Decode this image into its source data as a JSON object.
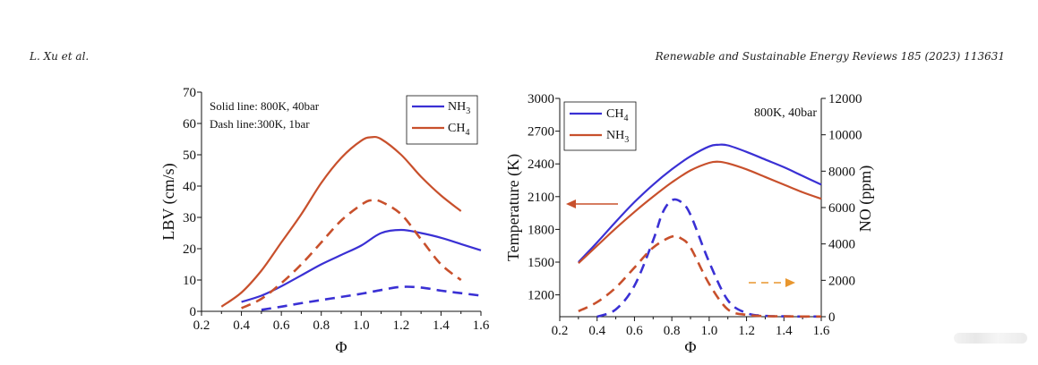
{
  "header": {
    "left": "L. Xu et al.",
    "right": "Renewable and Sustainable Energy Reviews 185 (2023) 113631"
  },
  "colors": {
    "blue": "#3a30d4",
    "red": "#c8502c",
    "orange": "#e8962e",
    "axis": "#111111"
  },
  "chart_data": [
    {
      "type": "line",
      "xlabel": "Φ",
      "ylabel": "LBV (cm/s)",
      "xlim": [
        0.2,
        1.6
      ],
      "ylim": [
        0,
        70
      ],
      "xticks": [
        "0.2",
        "0.4",
        "0.6",
        "0.8",
        "1.0",
        "1.2",
        "1.4",
        "1.6"
      ],
      "yticks": [
        "0",
        "10",
        "20",
        "30",
        "40",
        "50",
        "60",
        "70"
      ],
      "annotations": [
        "Solid line: 800K, 40bar",
        "Dash line:300K, 1bar"
      ],
      "legend": [
        {
          "label": "NH",
          "sub": "3",
          "color": "#3a30d4"
        },
        {
          "label": "CH",
          "sub": "4",
          "color": "#c8502c"
        }
      ],
      "series": [
        {
          "fuel": "CH4",
          "dash": false,
          "color": "#c8502c",
          "x": [
            0.3,
            0.4,
            0.5,
            0.6,
            0.7,
            0.8,
            0.9,
            1.0,
            1.05,
            1.1,
            1.2,
            1.3,
            1.4,
            1.5
          ],
          "y": [
            1.5,
            6,
            13,
            22,
            31,
            41,
            49,
            54.5,
            55.6,
            55,
            50,
            43,
            37,
            32
          ]
        },
        {
          "fuel": "NH3",
          "dash": false,
          "color": "#3a30d4",
          "x": [
            0.4,
            0.5,
            0.6,
            0.7,
            0.8,
            0.9,
            1.0,
            1.1,
            1.2,
            1.3,
            1.4,
            1.5,
            1.6
          ],
          "y": [
            3,
            5,
            8,
            11.5,
            15,
            18,
            21,
            25,
            26,
            25,
            23.5,
            21.5,
            19.5
          ]
        },
        {
          "fuel": "CH4",
          "dash": true,
          "color": "#c8502c",
          "x": [
            0.4,
            0.5,
            0.6,
            0.7,
            0.8,
            0.9,
            1.0,
            1.05,
            1.1,
            1.2,
            1.3,
            1.4,
            1.5
          ],
          "y": [
            1,
            4,
            9,
            15,
            22,
            29,
            34,
            35.5,
            35,
            31,
            23,
            15,
            10
          ]
        },
        {
          "fuel": "NH3",
          "dash": true,
          "color": "#3a30d4",
          "x": [
            0.5,
            0.6,
            0.7,
            0.8,
            0.9,
            1.0,
            1.1,
            1.2,
            1.3,
            1.4,
            1.5,
            1.6
          ],
          "y": [
            0.5,
            1.5,
            2.6,
            3.6,
            4.6,
            5.6,
            6.8,
            7.8,
            7.6,
            6.6,
            5.8,
            5
          ]
        }
      ]
    },
    {
      "type": "line",
      "xlabel": "Φ",
      "ylabel": "Temperature (K)",
      "y2label": "NO (ppm)",
      "xlim": [
        0.2,
        1.6
      ],
      "ylim": [
        1000,
        3000
      ],
      "y2lim": [
        0,
        12000
      ],
      "xticks": [
        "0.2",
        "0.4",
        "0.6",
        "0.8",
        "1.0",
        "1.2",
        "1.4",
        "1.6"
      ],
      "yticks": [
        "1200",
        "1500",
        "1800",
        "2100",
        "2400",
        "2700",
        "3000"
      ],
      "y2ticks": [
        "0",
        "2000",
        "4000",
        "6000",
        "8000",
        "10000",
        "12000"
      ],
      "annotation": "800K, 40bar",
      "legend": [
        {
          "label": "CH",
          "sub": "4",
          "color": "#3a30d4"
        },
        {
          "label": "NH",
          "sub": "3",
          "color": "#c8502c"
        }
      ],
      "series": [
        {
          "fuel": "CH4",
          "quantity": "Temperature",
          "axis": "left",
          "dash": false,
          "color": "#3a30d4",
          "x": [
            0.3,
            0.4,
            0.5,
            0.6,
            0.7,
            0.8,
            0.9,
            1.0,
            1.05,
            1.1,
            1.2,
            1.3,
            1.4,
            1.5,
            1.6
          ],
          "y": [
            1500,
            1680,
            1870,
            2050,
            2210,
            2350,
            2470,
            2560,
            2575,
            2570,
            2510,
            2440,
            2370,
            2290,
            2210
          ]
        },
        {
          "fuel": "NH3",
          "quantity": "Temperature",
          "axis": "left",
          "dash": false,
          "color": "#c8502c",
          "x": [
            0.3,
            0.4,
            0.5,
            0.6,
            0.7,
            0.8,
            0.9,
            1.0,
            1.05,
            1.1,
            1.2,
            1.3,
            1.4,
            1.5,
            1.6
          ],
          "y": [
            1490,
            1650,
            1810,
            1960,
            2100,
            2230,
            2340,
            2410,
            2420,
            2405,
            2350,
            2280,
            2210,
            2140,
            2080
          ]
        },
        {
          "fuel": "CH4",
          "quantity": "NO",
          "axis": "right",
          "dash": true,
          "color": "#3a30d4",
          "x": [
            0.4,
            0.5,
            0.6,
            0.7,
            0.75,
            0.8,
            0.85,
            0.9,
            1.0,
            1.1,
            1.2,
            1.3,
            1.4,
            1.5,
            1.6
          ],
          "y": [
            0,
            400,
            1700,
            4200,
            5700,
            6400,
            6300,
            5600,
            3000,
            900,
            200,
            50,
            20,
            10,
            10
          ]
        },
        {
          "fuel": "NH3",
          "quantity": "NO",
          "axis": "right",
          "dash": true,
          "color": "#c8502c",
          "x": [
            0.3,
            0.4,
            0.5,
            0.6,
            0.7,
            0.8,
            0.85,
            0.9,
            1.0,
            1.1,
            1.2,
            1.3,
            1.4,
            1.5,
            1.6
          ],
          "y": [
            300,
            800,
            1600,
            2700,
            3800,
            4400,
            4300,
            3800,
            1800,
            400,
            100,
            30,
            20,
            10,
            10
          ]
        }
      ],
      "arrows": [
        {
          "points_to": "left axis",
          "color": "#c8502c",
          "dash": false
        },
        {
          "points_to": "right axis",
          "color": "#e8962e",
          "dash": true
        }
      ]
    }
  ]
}
